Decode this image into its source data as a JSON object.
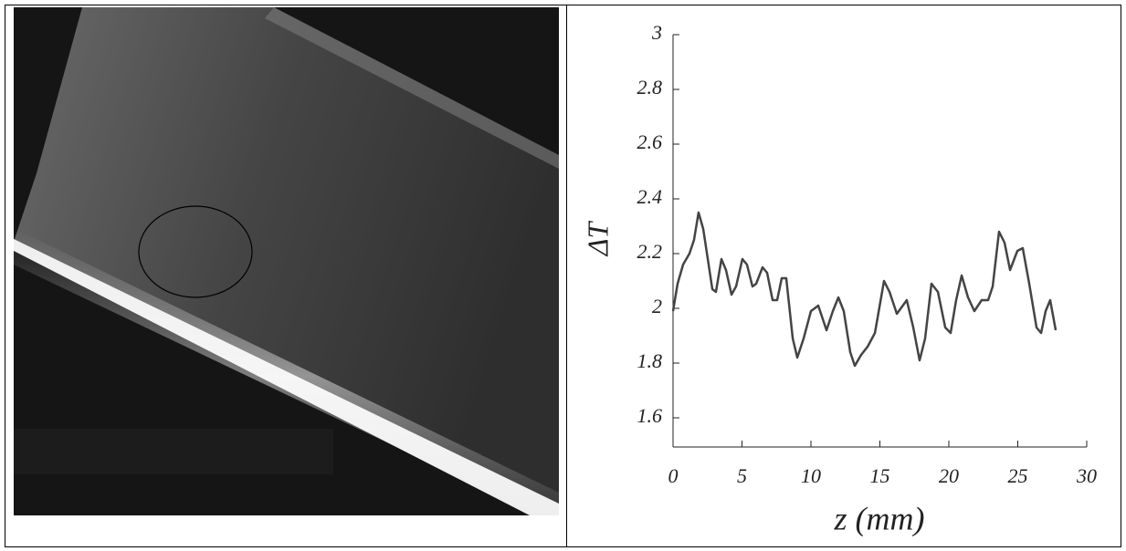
{
  "chart_data": {
    "type": "line",
    "x_label": "z (mm)",
    "y_label": "ΔT",
    "xlim": [
      0,
      30
    ],
    "xticks": [
      0,
      5,
      10,
      15,
      20,
      25,
      30
    ],
    "ylim": [
      1.5,
      3
    ],
    "yticks": [
      1.6,
      1.8,
      2,
      2.2,
      2.4,
      2.6,
      2.8,
      3
    ],
    "series": [
      {
        "color": "#444444",
        "x": [
          0,
          0.33,
          0.73,
          1.19,
          1.52,
          1.85,
          2.19,
          2.52,
          2.85,
          3.11,
          3.51,
          3.84,
          4.24,
          4.57,
          5.03,
          5.36,
          5.76,
          6.03,
          6.49,
          6.82,
          7.22,
          7.55,
          7.88,
          8.21,
          8.68,
          9.01,
          9.47,
          10.0,
          10.53,
          11.13,
          11.59,
          11.99,
          12.38,
          12.85,
          13.18,
          13.64,
          14.11,
          14.64,
          15.3,
          15.7,
          16.23,
          16.95,
          17.42,
          17.88,
          18.28,
          18.74,
          19.21,
          19.74,
          20.13,
          20.53,
          20.93,
          21.39,
          21.85,
          22.38,
          22.85,
          23.18,
          23.64,
          24.04,
          24.44,
          24.97,
          25.36,
          25.83,
          26.36,
          26.69,
          27.02,
          27.35,
          27.75
        ],
        "values": [
          1.99,
          2.09,
          2.16,
          2.2,
          2.25,
          2.35,
          2.29,
          2.18,
          2.07,
          2.06,
          2.18,
          2.14,
          2.05,
          2.08,
          2.18,
          2.16,
          2.08,
          2.09,
          2.15,
          2.13,
          2.03,
          2.03,
          2.11,
          2.11,
          1.89,
          1.82,
          1.89,
          1.99,
          2.01,
          1.92,
          1.99,
          2.04,
          1.99,
          1.84,
          1.79,
          1.83,
          1.86,
          1.91,
          2.1,
          2.06,
          1.98,
          2.03,
          1.93,
          1.81,
          1.89,
          2.09,
          2.06,
          1.93,
          1.91,
          2.03,
          2.12,
          2.04,
          1.99,
          2.03,
          2.03,
          2.08,
          2.28,
          2.24,
          2.14,
          2.21,
          2.22,
          2.09,
          1.93,
          1.91,
          1.99,
          2.03,
          1.92
        ]
      }
    ]
  }
}
